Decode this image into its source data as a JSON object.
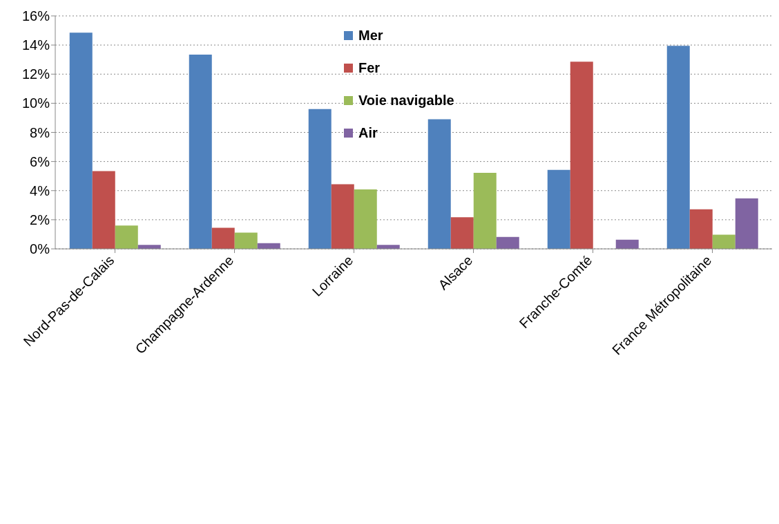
{
  "chart_data": {
    "type": "bar",
    "categories": [
      "Nord-Pas-de-Calais",
      "Champagne-Ardenne",
      "Lorraine",
      "Alsace",
      "Franche-Comté",
      "France Métropolitaine"
    ],
    "series": [
      {
        "name": "Mer",
        "color": "#4f81bd",
        "values": [
          14.85,
          13.34,
          9.6,
          8.9,
          5.43,
          13.95
        ]
      },
      {
        "name": "Fer",
        "color": "#c0504d",
        "values": [
          5.34,
          1.45,
          4.44,
          2.17,
          12.86,
          2.72
        ]
      },
      {
        "name": "Voie navigable",
        "color": "#9bbb59",
        "values": [
          1.6,
          1.12,
          4.08,
          5.22,
          0,
          0.97
        ]
      },
      {
        "name": "Air",
        "color": "#8064a2",
        "values": [
          0.27,
          0.39,
          0.27,
          0.82,
          0.63,
          3.47
        ]
      }
    ],
    "ylim": [
      0,
      16
    ],
    "yticks": [
      {
        "value": 0,
        "label": "0%"
      },
      {
        "value": 2,
        "label": "2%"
      },
      {
        "value": 4,
        "label": "4%"
      },
      {
        "value": 6,
        "label": "6%"
      },
      {
        "value": 8,
        "label": "8%"
      },
      {
        "value": 10,
        "label": "10%"
      },
      {
        "value": 12,
        "label": "12%"
      },
      {
        "value": 14,
        "label": "14%"
      },
      {
        "value": 16,
        "label": "16%"
      }
    ],
    "grid": "y",
    "legend": "top"
  }
}
